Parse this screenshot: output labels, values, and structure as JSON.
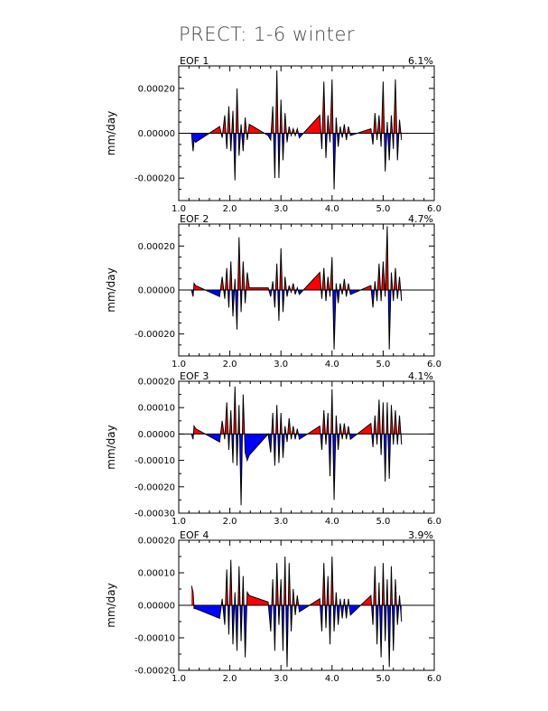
{
  "title": "PRECT: 1-6 winter",
  "colors": {
    "positive": "#ff0000",
    "negative": "#0000ff",
    "line": "#000000",
    "zero_line": "#000000"
  },
  "chart_data": [
    {
      "type": "area",
      "label": "EOF 1",
      "percent": "6.1%",
      "ylabel": "mm/day",
      "xlim": [
        1.0,
        6.0
      ],
      "ylim": [
        -0.0003,
        0.0003
      ],
      "xticks": [
        "1.0",
        "2.0",
        "3.0",
        "4.0",
        "5.0",
        "6.0"
      ],
      "yticks": [
        {
          "v": 0.0002,
          "t": "0.00020"
        },
        {
          "v": 0.0,
          "t": "0.00000"
        },
        {
          "v": -0.0002,
          "t": "-0.00020"
        }
      ],
      "x": [
        1.25,
        1.28,
        1.3,
        1.33,
        1.8,
        1.85,
        1.9,
        1.94,
        1.98,
        2.02,
        2.06,
        2.1,
        2.14,
        2.18,
        2.22,
        2.26,
        2.3,
        2.34,
        2.38,
        2.75,
        2.8,
        2.84,
        2.88,
        2.92,
        2.96,
        3.0,
        3.04,
        3.08,
        3.12,
        3.16,
        3.2,
        3.24,
        3.28,
        3.32,
        3.36,
        3.76,
        3.8,
        3.84,
        3.88,
        3.92,
        3.96,
        4.0,
        4.04,
        4.08,
        4.12,
        4.16,
        4.2,
        4.24,
        4.28,
        4.32,
        4.36,
        4.76,
        4.8,
        4.84,
        4.88,
        4.92,
        4.96,
        5.0,
        5.04,
        5.08,
        5.12,
        5.16,
        5.2,
        5.24,
        5.28,
        5.32,
        5.36
      ],
      "y": [
        0.0,
        -8e-05,
        -3e-05,
        -4e-05,
        3e-05,
        -2e-05,
        8e-05,
        -7e-05,
        0.00012,
        -8e-05,
        0.0001,
        -0.00021,
        0.0002,
        -0.0001,
        4e-05,
        -8e-05,
        7e-05,
        -3e-05,
        4e-05,
        -1e-05,
        -3e-05,
        0.00012,
        -0.0002,
        0.00028,
        -0.0002,
        0.00015,
        -0.00012,
        9e-05,
        -4e-05,
        3e-05,
        -1e-05,
        2e-05,
        -1e-05,
        2e-05,
        -2e-05,
        8e-05,
        -7e-05,
        0.00023,
        -0.00011,
        8e-05,
        -4e-05,
        0.00024,
        -0.00025,
        7e-05,
        -6e-05,
        3e-05,
        -2e-05,
        4e-05,
        -3e-05,
        3e-05,
        -1e-05,
        2e-05,
        -5e-05,
        9e-05,
        -3e-05,
        8e-05,
        -6e-05,
        0.00023,
        -0.00017,
        5e-05,
        -0.00012,
        8e-05,
        -7e-05,
        0.00024,
        -0.00012,
        6e-05,
        -3e-05
      ]
    },
    {
      "type": "area",
      "label": "EOF 2",
      "percent": "4.7%",
      "ylabel": "mm/day",
      "xlim": [
        1.0,
        6.0
      ],
      "ylim": [
        -0.0003,
        0.0003
      ],
      "xticks": [
        "1.0",
        "2.0",
        "3.0",
        "4.0",
        "5.0",
        "6.0"
      ],
      "yticks": [
        {
          "v": 0.0002,
          "t": "0.00020"
        },
        {
          "v": 0.0,
          "t": "0.00000"
        },
        {
          "v": -0.0002,
          "t": "-0.00020"
        }
      ],
      "x": [
        1.25,
        1.28,
        1.3,
        1.33,
        1.8,
        1.85,
        1.9,
        1.94,
        1.98,
        2.02,
        2.06,
        2.1,
        2.14,
        2.18,
        2.22,
        2.26,
        2.3,
        2.34,
        2.38,
        2.75,
        2.8,
        2.84,
        2.88,
        2.92,
        2.96,
        3.0,
        3.04,
        3.08,
        3.12,
        3.16,
        3.2,
        3.24,
        3.28,
        3.32,
        3.36,
        3.76,
        3.8,
        3.84,
        3.88,
        3.92,
        3.96,
        4.0,
        4.04,
        4.08,
        4.12,
        4.16,
        4.2,
        4.24,
        4.28,
        4.32,
        4.36,
        4.76,
        4.8,
        4.84,
        4.88,
        4.92,
        4.96,
        5.0,
        5.04,
        5.08,
        5.12,
        5.16,
        5.2,
        5.24,
        5.28,
        5.32,
        5.36
      ],
      "y": [
        0.0,
        -3e-05,
        3e-05,
        2e-05,
        -3e-05,
        6e-05,
        -4e-05,
        0.0001,
        -8e-05,
        0.00013,
        -0.00012,
        5e-05,
        -0.00018,
        0.00024,
        -0.0001,
        0.00013,
        -6e-05,
        8e-05,
        1e-05,
        1e-05,
        -3e-05,
        4e-05,
        -8e-05,
        0.00012,
        -0.00014,
        0.00019,
        -0.0001,
        6e-05,
        -3e-05,
        2e-05,
        -1e-05,
        3e-05,
        -2e-05,
        1e-05,
        -2e-05,
        8e-05,
        -4e-05,
        0.0001,
        -5e-05,
        6e-05,
        -3e-05,
        0.00015,
        -0.00027,
        3e-05,
        -6e-05,
        3e-05,
        -2e-05,
        5e-05,
        -3e-05,
        3e-05,
        -2e-05,
        2e-05,
        -8e-05,
        4e-05,
        -5e-05,
        0.00012,
        -5e-05,
        0.00013,
        -3e-05,
        0.00029,
        -0.00027,
        8e-05,
        -5e-05,
        0.0001,
        -4e-05,
        6e-05,
        -5e-05
      ]
    },
    {
      "type": "area",
      "label": "EOF 3",
      "percent": "4.1%",
      "ylabel": "mm/day",
      "xlim": [
        1.0,
        6.0
      ],
      "ylim": [
        -0.0003,
        0.0002
      ],
      "xticks": [
        "1.0",
        "2.0",
        "3.0",
        "4.0",
        "5.0",
        "6.0"
      ],
      "yticks": [
        {
          "v": 0.0002,
          "t": "0.00020"
        },
        {
          "v": 0.0001,
          "t": "0.00010"
        },
        {
          "v": 0.0,
          "t": "0.00000"
        },
        {
          "v": -0.0001,
          "t": "-0.00010"
        },
        {
          "v": -0.0002,
          "t": "-0.00020"
        },
        {
          "v": -0.0003,
          "t": "-0.00030"
        }
      ],
      "x": [
        1.25,
        1.28,
        1.3,
        1.33,
        1.8,
        1.85,
        1.9,
        1.94,
        1.98,
        2.02,
        2.06,
        2.1,
        2.14,
        2.18,
        2.22,
        2.26,
        2.3,
        2.34,
        2.38,
        2.75,
        2.8,
        2.84,
        2.88,
        2.92,
        2.96,
        3.0,
        3.04,
        3.08,
        3.12,
        3.16,
        3.2,
        3.24,
        3.28,
        3.32,
        3.36,
        3.76,
        3.8,
        3.84,
        3.88,
        3.92,
        3.96,
        4.0,
        4.04,
        4.08,
        4.12,
        4.16,
        4.2,
        4.24,
        4.28,
        4.32,
        4.36,
        4.76,
        4.8,
        4.84,
        4.88,
        4.92,
        4.96,
        5.0,
        5.04,
        5.08,
        5.12,
        5.16,
        5.2,
        5.24,
        5.28,
        5.32,
        5.36
      ],
      "y": [
        0.0,
        -2e-05,
        3e-05,
        2e-05,
        -3e-05,
        5e-05,
        -2e-05,
        0.00012,
        -6e-05,
        9e-05,
        -0.00011,
        0.00018,
        -0.00012,
        0.00011,
        -0.00027,
        0.00015,
        -7e-05,
        -0.0001,
        -8e-05,
        0.0,
        -7e-05,
        8e-05,
        -0.00012,
        0.00011,
        -0.00011,
        8e-05,
        -9e-05,
        3e-05,
        -3e-05,
        6e-05,
        -2e-05,
        3e-05,
        -2e-05,
        2e-05,
        -2e-05,
        3e-05,
        -6e-05,
        9e-05,
        -4e-05,
        8e-05,
        -0.00016,
        0.00017,
        -0.00025,
        7e-05,
        -6e-05,
        4e-05,
        -2e-05,
        4e-05,
        -2e-05,
        3e-05,
        -2e-05,
        4e-05,
        -5e-05,
        7e-05,
        -4e-05,
        0.00013,
        -8e-05,
        0.00012,
        -0.00018,
        0.00012,
        -0.00017,
        0.00011,
        -4e-05,
        9e-05,
        -4e-05,
        7e-05,
        -4e-05
      ]
    },
    {
      "type": "area",
      "label": "EOF 4",
      "percent": "3.9%",
      "ylabel": "mm/day",
      "xlim": [
        1.0,
        6.0
      ],
      "ylim": [
        -0.0002,
        0.0002
      ],
      "xticks": [
        "1.0",
        "2.0",
        "3.0",
        "4.0",
        "5.0",
        "6.0"
      ],
      "yticks": [
        {
          "v": 0.0002,
          "t": "0.00020"
        },
        {
          "v": 0.0001,
          "t": "0.00010"
        },
        {
          "v": 0.0,
          "t": "0.00000"
        },
        {
          "v": -0.0001,
          "t": "-0.00010"
        },
        {
          "v": -0.0002,
          "t": "-0.00020"
        }
      ],
      "x": [
        1.25,
        1.28,
        1.3,
        1.33,
        1.8,
        1.85,
        1.9,
        1.94,
        1.98,
        2.02,
        2.06,
        2.1,
        2.14,
        2.18,
        2.22,
        2.26,
        2.3,
        2.34,
        2.38,
        2.75,
        2.8,
        2.84,
        2.88,
        2.92,
        2.96,
        3.0,
        3.04,
        3.08,
        3.12,
        3.16,
        3.2,
        3.24,
        3.28,
        3.32,
        3.36,
        3.76,
        3.8,
        3.84,
        3.88,
        3.92,
        3.96,
        4.0,
        4.04,
        4.08,
        4.12,
        4.16,
        4.2,
        4.24,
        4.28,
        4.32,
        4.36,
        4.76,
        4.8,
        4.84,
        4.88,
        4.92,
        4.96,
        5.0,
        5.04,
        5.08,
        5.12,
        5.16,
        5.2,
        5.24,
        5.28,
        5.32,
        5.36
      ],
      "y": [
        6e-05,
        4e-05,
        -1e-05,
        -1e-05,
        -4e-05,
        2e-05,
        -6e-05,
        0.00011,
        -9e-05,
        0.00014,
        -0.00012,
        4e-05,
        -0.00014,
        0.00012,
        -0.00011,
        9e-05,
        -0.00016,
        4e-05,
        3e-05,
        1e-05,
        -8e-05,
        8e-05,
        -0.00014,
        0.00013,
        -6e-05,
        8e-05,
        -0.00014,
        0.00015,
        -0.00019,
        0.00013,
        -8e-05,
        5e-05,
        -3e-05,
        3e-05,
        -2e-05,
        2e-05,
        -8e-05,
        0.00013,
        -7e-05,
        9e-05,
        -0.00012,
        0.00015,
        -8e-05,
        4e-05,
        -6e-05,
        2e-05,
        -4e-05,
        2e-05,
        -4e-05,
        2e-05,
        -3e-05,
        3e-05,
        -6e-05,
        0.00012,
        -0.00012,
        7e-05,
        -0.00016,
        0.00013,
        -0.00011,
        8e-05,
        -0.00019,
        0.00012,
        -0.00014,
        8e-05,
        -6e-05,
        3e-05,
        -5e-05
      ]
    }
  ]
}
